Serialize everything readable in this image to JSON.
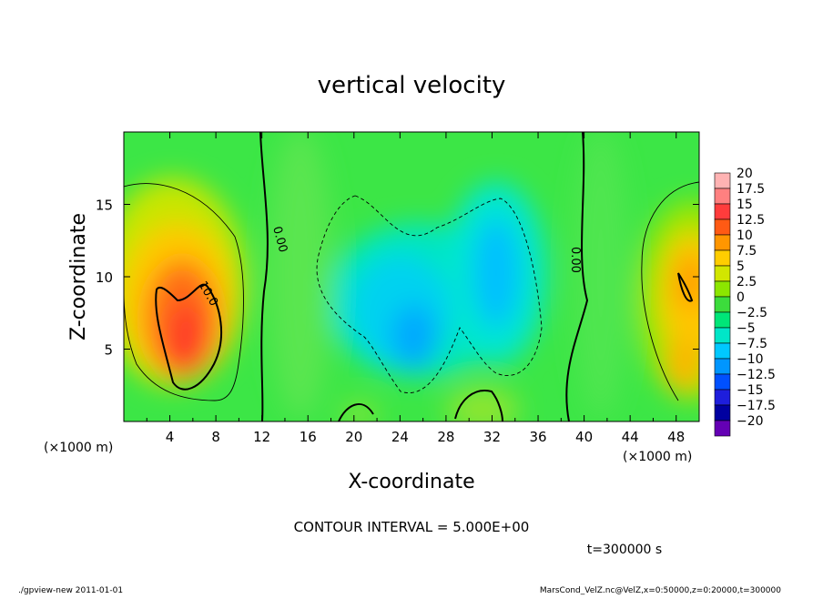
{
  "chart_data": {
    "type": "heatmap",
    "title": "vertical velocity",
    "xlabel": "X-coordinate",
    "ylabel": "Z-coordinate",
    "x_unit": "(×1000 m)",
    "xlim": [
      0,
      50
    ],
    "ylim": [
      0,
      20
    ],
    "x_ticks": [
      4,
      8,
      12,
      16,
      20,
      24,
      28,
      32,
      36,
      40,
      44,
      48
    ],
    "y_ticks": [
      5,
      10,
      15
    ],
    "colorbar": {
      "labels": [
        "20",
        "17.5",
        "15",
        "12.5",
        "10",
        "7.5",
        "5",
        "2.5",
        "0",
        "−2.5",
        "−5",
        "−7.5",
        "−10",
        "−12.5",
        "−15",
        "−17.5",
        "−20"
      ],
      "colors": [
        "#ffb3b3",
        "#ff8080",
        "#ff3c3c",
        "#ff5a14",
        "#ff9600",
        "#ffcd00",
        "#d2e600",
        "#8ce600",
        "#3cdc3c",
        "#00e678",
        "#00e6c8",
        "#00c8ff",
        "#0096ff",
        "#0050ff",
        "#1e1edc",
        "#0000a0",
        "#6400b4"
      ]
    },
    "contour_labels": [
      "0.00",
      "0.00",
      "10.0"
    ],
    "contour_interval": "CONTOUR INTERVAL = 5.000E+00",
    "time": "t=300000 s"
  },
  "footer": {
    "left": "./gpview-new  2011-01-01",
    "right": "MarsCond_VelZ.nc@VelZ,x=0:50000,z=0:20000,t=300000"
  }
}
